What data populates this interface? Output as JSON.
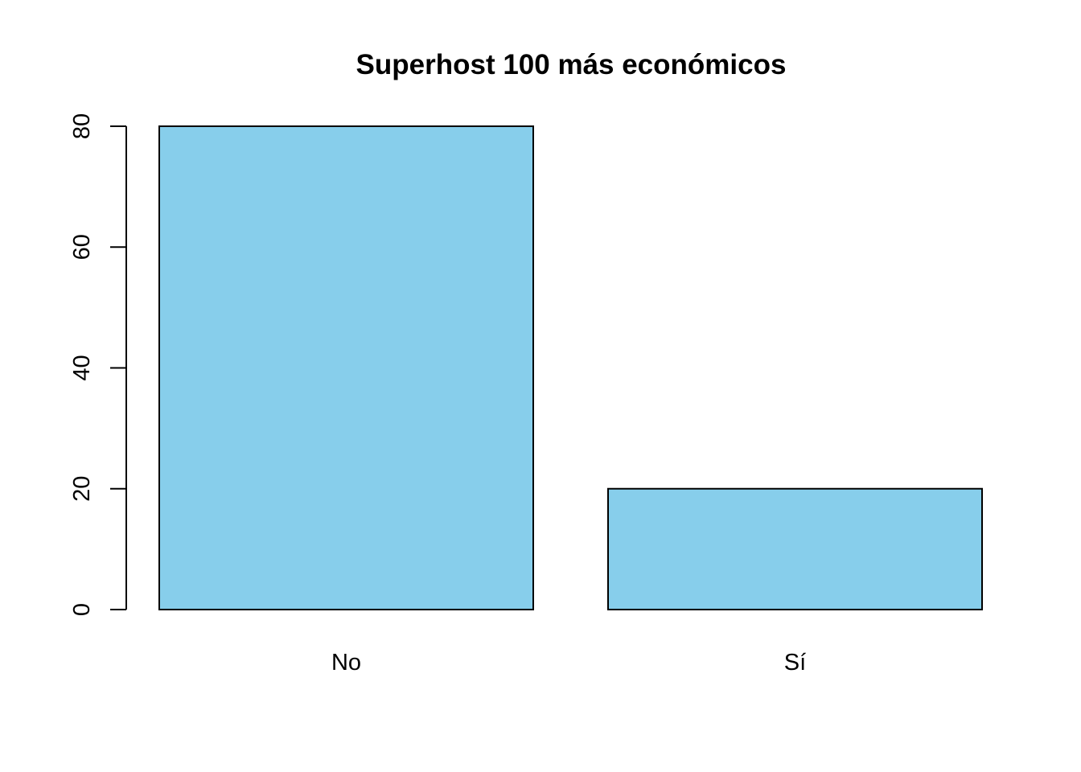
{
  "chart_data": {
    "type": "bar",
    "title": "Superhost 100 más económicos",
    "xlabel": "",
    "ylabel": "",
    "categories": [
      "No",
      "Sí"
    ],
    "values": [
      80,
      20
    ],
    "ylim": [
      0,
      80
    ],
    "yticks": [
      0,
      20,
      40,
      60,
      80
    ],
    "bar_color": "#87CEEB",
    "border_color": "#000000",
    "grid": false,
    "legend": "none"
  }
}
